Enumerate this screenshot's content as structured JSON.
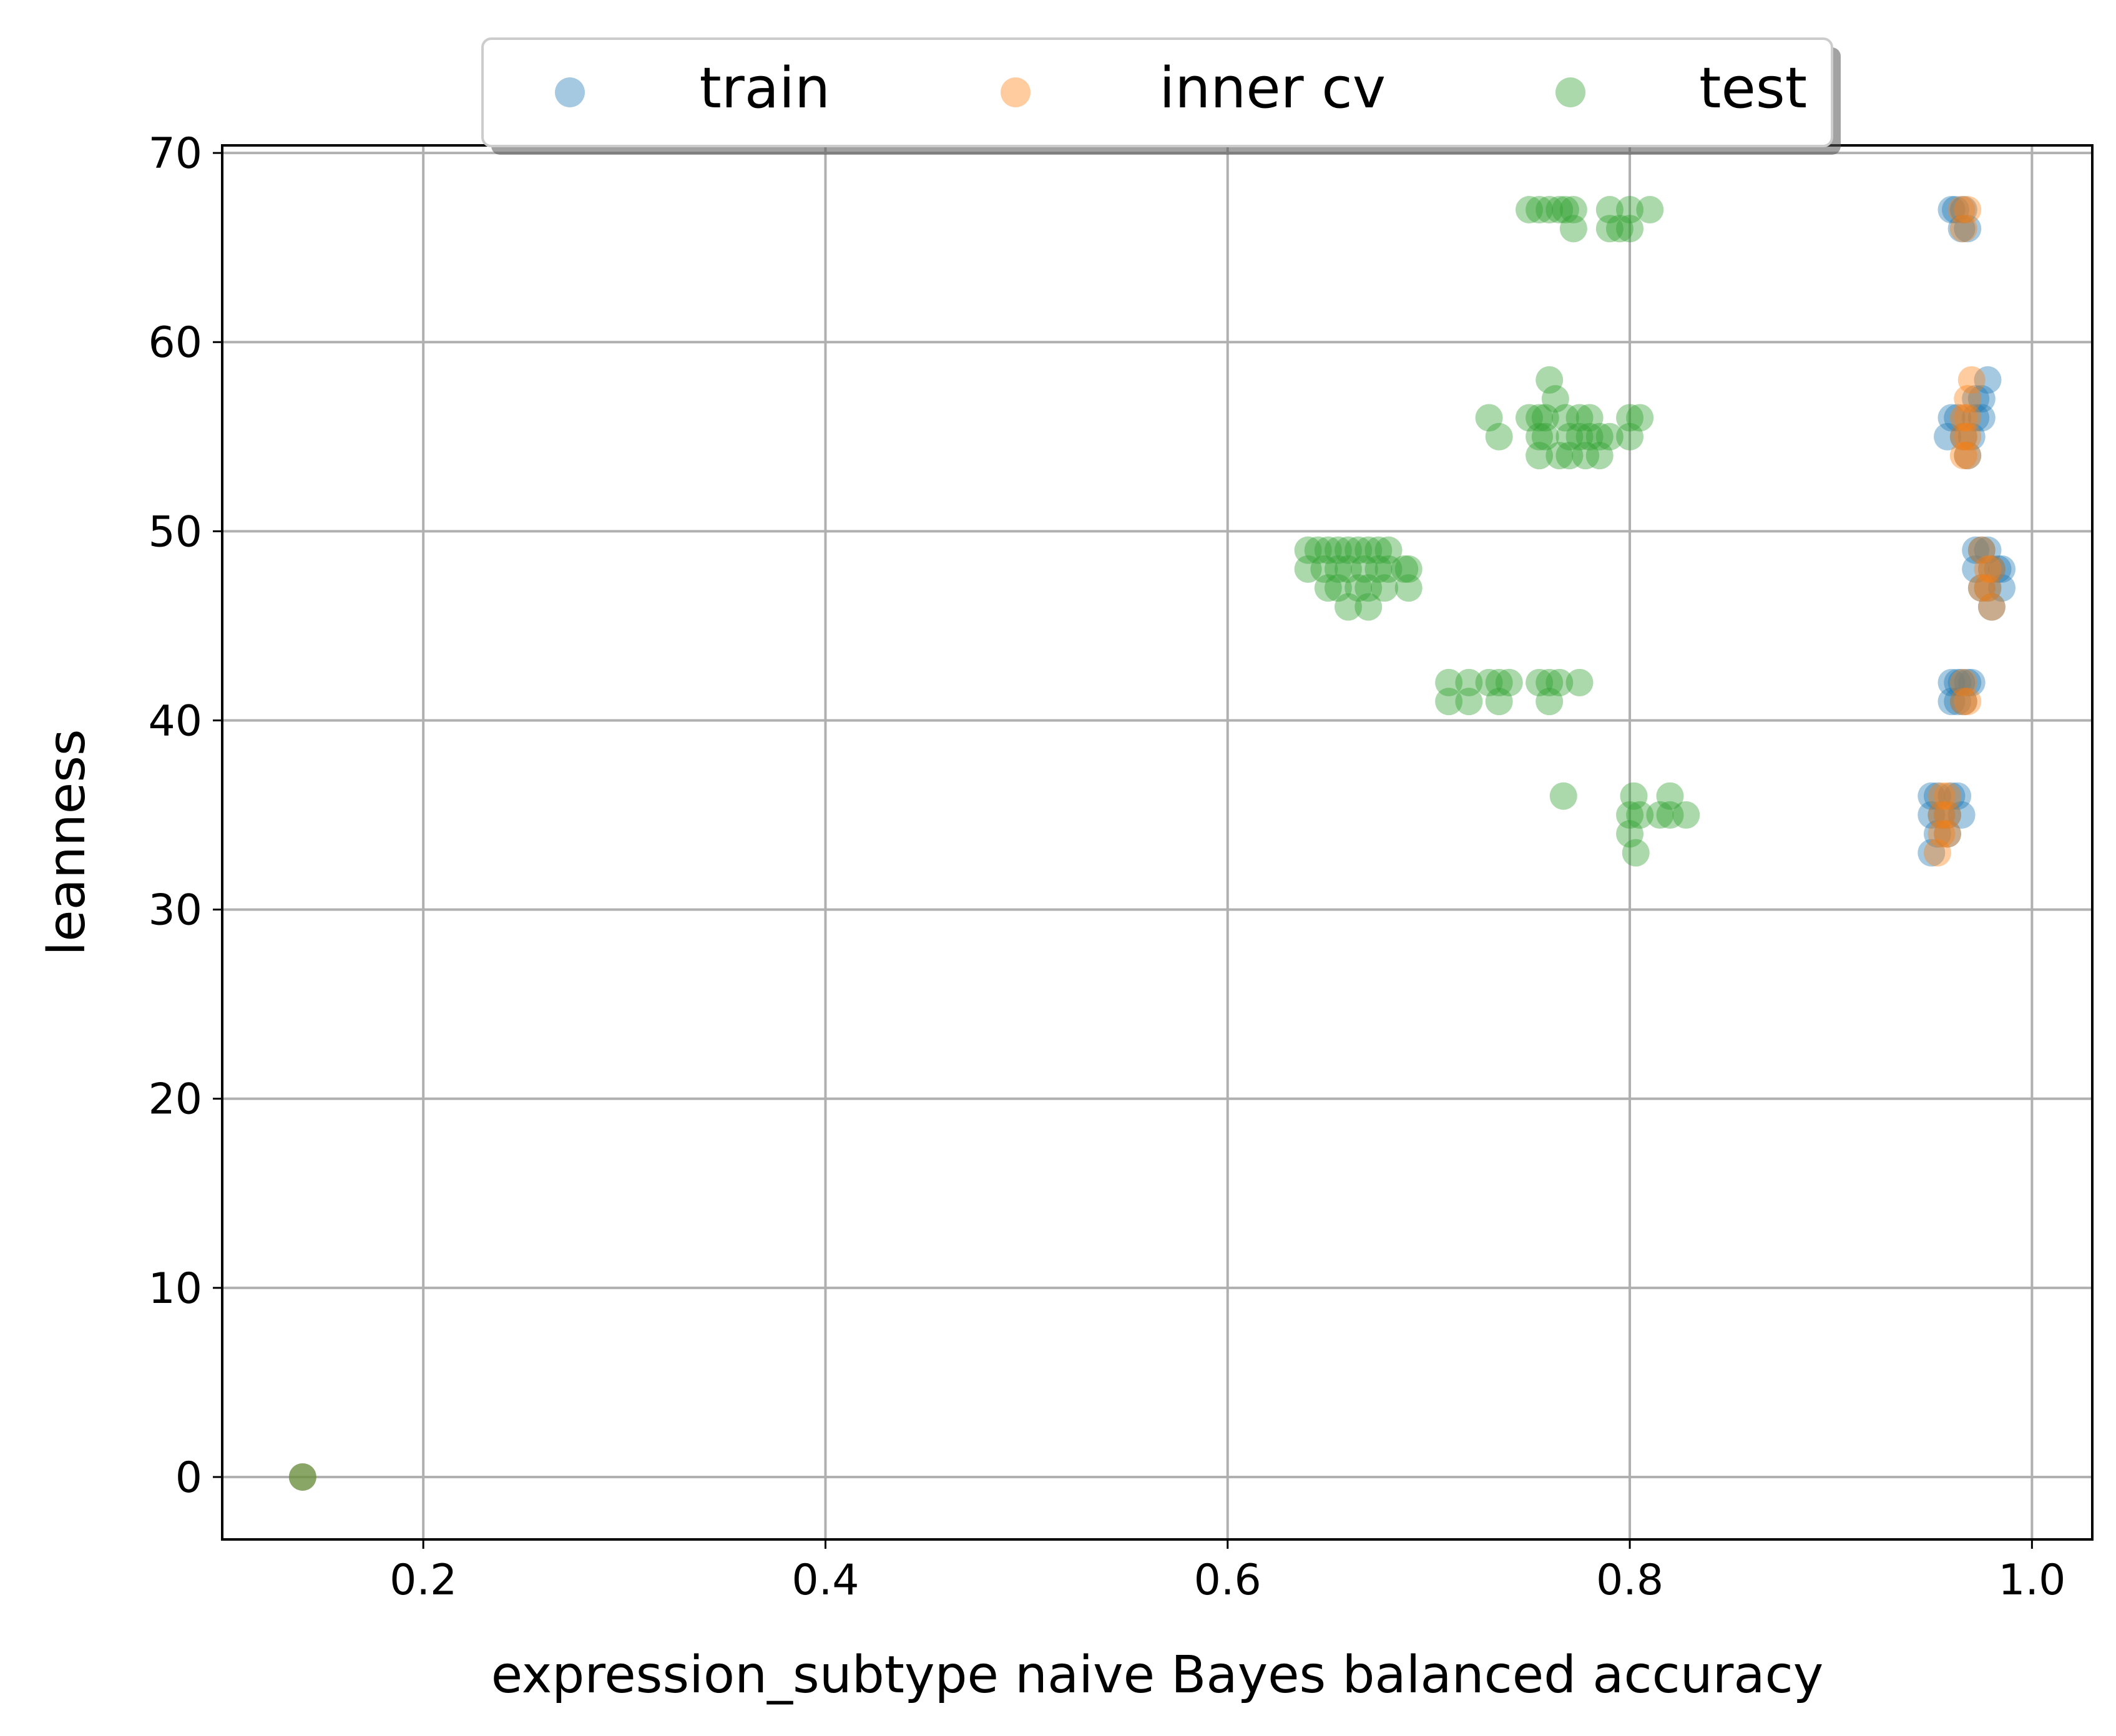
{
  "chart_data": {
    "type": "scatter",
    "title": "",
    "xlabel": "expression_subtype naive Bayes balanced accuracy",
    "ylabel": "leanness",
    "xlim": [
      0.1,
      1.03
    ],
    "ylim": [
      -3.3,
      70.4
    ],
    "xticks": [
      0.2,
      0.4,
      0.6,
      0.8,
      1.0
    ],
    "xtick_labels": [
      "0.2",
      "0.4",
      "0.6",
      "0.8",
      "1.0"
    ],
    "yticks": [
      0,
      10,
      20,
      30,
      40,
      50,
      60,
      70
    ],
    "ytick_labels": [
      "0",
      "10",
      "20",
      "30",
      "40",
      "50",
      "60",
      "70"
    ],
    "grid": true,
    "legend": {
      "placement": "top-center, above axes",
      "columns": 3,
      "shadow": true
    },
    "series": [
      {
        "name": "train",
        "color": "#1f77b4",
        "alpha": 0.4,
        "points": [
          [
            0.14,
            0
          ],
          [
            0.96,
            67
          ],
          [
            0.962,
            67
          ],
          [
            0.965,
            66
          ],
          [
            0.968,
            66
          ],
          [
            0.966,
            67
          ],
          [
            0.978,
            58
          ],
          [
            0.972,
            57
          ],
          [
            0.975,
            56
          ],
          [
            0.96,
            56
          ],
          [
            0.963,
            56
          ],
          [
            0.966,
            55
          ],
          [
            0.958,
            55
          ],
          [
            0.97,
            55
          ],
          [
            0.968,
            54
          ],
          [
            0.972,
            56
          ],
          [
            0.975,
            57
          ],
          [
            0.972,
            49
          ],
          [
            0.975,
            49
          ],
          [
            0.978,
            49
          ],
          [
            0.98,
            48
          ],
          [
            0.983,
            48
          ],
          [
            0.985,
            48
          ],
          [
            0.975,
            47
          ],
          [
            0.985,
            47
          ],
          [
            0.972,
            48
          ],
          [
            0.978,
            47
          ],
          [
            0.98,
            46
          ],
          [
            0.96,
            42
          ],
          [
            0.963,
            42
          ],
          [
            0.965,
            42
          ],
          [
            0.968,
            42
          ],
          [
            0.97,
            42
          ],
          [
            0.96,
            41
          ],
          [
            0.963,
            41
          ],
          [
            0.966,
            41
          ],
          [
            0.95,
            36
          ],
          [
            0.953,
            36
          ],
          [
            0.96,
            36
          ],
          [
            0.963,
            36
          ],
          [
            0.95,
            35
          ],
          [
            0.955,
            35
          ],
          [
            0.958,
            35
          ],
          [
            0.965,
            35
          ],
          [
            0.95,
            33
          ],
          [
            0.953,
            34
          ],
          [
            0.958,
            34
          ]
        ]
      },
      {
        "name": "inner cv",
        "color": "#ff7f0e",
        "alpha": 0.4,
        "points": [
          [
            0.14,
            0
          ],
          [
            0.965,
            67
          ],
          [
            0.968,
            67
          ],
          [
            0.966,
            66
          ],
          [
            0.97,
            58
          ],
          [
            0.968,
            57
          ],
          [
            0.966,
            56
          ],
          [
            0.968,
            56
          ],
          [
            0.966,
            55
          ],
          [
            0.968,
            55
          ],
          [
            0.966,
            54
          ],
          [
            0.968,
            54
          ],
          [
            0.975,
            49
          ],
          [
            0.978,
            48
          ],
          [
            0.98,
            48
          ],
          [
            0.975,
            47
          ],
          [
            0.978,
            47
          ],
          [
            0.98,
            46
          ],
          [
            0.966,
            42
          ],
          [
            0.968,
            41
          ],
          [
            0.966,
            41
          ],
          [
            0.955,
            36
          ],
          [
            0.958,
            36
          ],
          [
            0.955,
            35
          ],
          [
            0.958,
            35
          ],
          [
            0.955,
            34
          ],
          [
            0.958,
            34
          ],
          [
            0.953,
            33
          ]
        ]
      },
      {
        "name": "test",
        "color": "#2ca02c",
        "alpha": 0.4,
        "points": [
          [
            0.14,
            0
          ],
          [
            0.75,
            67
          ],
          [
            0.755,
            67
          ],
          [
            0.76,
            67
          ],
          [
            0.765,
            67
          ],
          [
            0.768,
            67
          ],
          [
            0.772,
            67
          ],
          [
            0.79,
            67
          ],
          [
            0.8,
            67
          ],
          [
            0.81,
            67
          ],
          [
            0.772,
            66
          ],
          [
            0.79,
            66
          ],
          [
            0.795,
            66
          ],
          [
            0.8,
            66
          ],
          [
            0.76,
            58
          ],
          [
            0.763,
            57
          ],
          [
            0.73,
            56
          ],
          [
            0.75,
            56
          ],
          [
            0.755,
            56
          ],
          [
            0.758,
            56
          ],
          [
            0.768,
            56
          ],
          [
            0.775,
            56
          ],
          [
            0.78,
            56
          ],
          [
            0.8,
            56
          ],
          [
            0.805,
            56
          ],
          [
            0.735,
            55
          ],
          [
            0.755,
            55
          ],
          [
            0.758,
            55
          ],
          [
            0.77,
            55
          ],
          [
            0.775,
            55
          ],
          [
            0.78,
            55
          ],
          [
            0.785,
            55
          ],
          [
            0.79,
            55
          ],
          [
            0.8,
            55
          ],
          [
            0.755,
            54
          ],
          [
            0.765,
            54
          ],
          [
            0.77,
            54
          ],
          [
            0.778,
            54
          ],
          [
            0.785,
            54
          ],
          [
            0.64,
            49
          ],
          [
            0.645,
            49
          ],
          [
            0.65,
            49
          ],
          [
            0.655,
            49
          ],
          [
            0.66,
            49
          ],
          [
            0.665,
            49
          ],
          [
            0.67,
            49
          ],
          [
            0.675,
            49
          ],
          [
            0.68,
            49
          ],
          [
            0.64,
            48
          ],
          [
            0.648,
            48
          ],
          [
            0.655,
            48
          ],
          [
            0.66,
            48
          ],
          [
            0.668,
            48
          ],
          [
            0.675,
            48
          ],
          [
            0.68,
            48
          ],
          [
            0.688,
            48
          ],
          [
            0.69,
            48
          ],
          [
            0.65,
            47
          ],
          [
            0.655,
            47
          ],
          [
            0.665,
            47
          ],
          [
            0.67,
            47
          ],
          [
            0.678,
            47
          ],
          [
            0.69,
            47
          ],
          [
            0.66,
            46
          ],
          [
            0.67,
            46
          ],
          [
            0.71,
            42
          ],
          [
            0.72,
            42
          ],
          [
            0.73,
            42
          ],
          [
            0.735,
            42
          ],
          [
            0.74,
            42
          ],
          [
            0.755,
            42
          ],
          [
            0.76,
            42
          ],
          [
            0.765,
            42
          ],
          [
            0.775,
            42
          ],
          [
            0.71,
            41
          ],
          [
            0.72,
            41
          ],
          [
            0.735,
            41
          ],
          [
            0.76,
            41
          ],
          [
            0.767,
            36
          ],
          [
            0.802,
            36
          ],
          [
            0.82,
            36
          ],
          [
            0.8,
            35
          ],
          [
            0.805,
            35
          ],
          [
            0.815,
            35
          ],
          [
            0.82,
            35
          ],
          [
            0.828,
            35
          ],
          [
            0.8,
            34
          ],
          [
            0.803,
            33
          ]
        ]
      }
    ]
  }
}
